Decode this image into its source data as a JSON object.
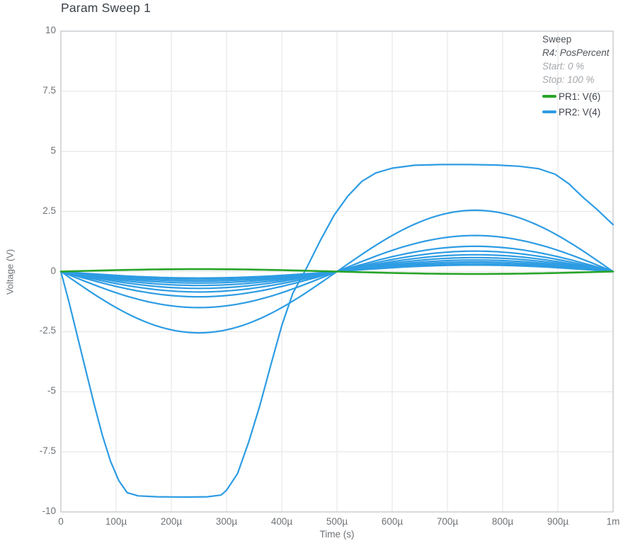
{
  "colors": {
    "green": "#28a428",
    "blue": "#2d9ce3",
    "grid": "#ebebed",
    "axis_border": "#c6cacd",
    "title_text": "#3b4147",
    "tick_text": "#6e7276",
    "legend_text": "#50555a",
    "legend_muted": "#a3a7ab"
  },
  "chart_data": {
    "type": "line",
    "title": "Param Sweep 1",
    "xlabel": "Time (s)",
    "ylabel": "Voltage (V)",
    "xlim_s": [
      0,
      0.001
    ],
    "ylim_v": [
      -10,
      10
    ],
    "grid": true,
    "x_ticks": [
      {
        "t_us": 0,
        "label": "0"
      },
      {
        "t_us": 100,
        "label": "100µ"
      },
      {
        "t_us": 200,
        "label": "200µ"
      },
      {
        "t_us": 300,
        "label": "300µ"
      },
      {
        "t_us": 400,
        "label": "400µ"
      },
      {
        "t_us": 500,
        "label": "500µ"
      },
      {
        "t_us": 600,
        "label": "600µ"
      },
      {
        "t_us": 700,
        "label": "700µ"
      },
      {
        "t_us": 800,
        "label": "800µ"
      },
      {
        "t_us": 900,
        "label": "900µ"
      },
      {
        "t_us": 1000,
        "label": "1m"
      }
    ],
    "y_ticks": [
      {
        "v": 10,
        "label": "10"
      },
      {
        "v": 7.5,
        "label": "7.5"
      },
      {
        "v": 5,
        "label": "5"
      },
      {
        "v": 2.5,
        "label": "2.5"
      },
      {
        "v": 0,
        "label": "0"
      },
      {
        "v": -2.5,
        "label": "-2.5"
      },
      {
        "v": -5,
        "label": "-5"
      },
      {
        "v": -7.5,
        "label": "-7.5"
      },
      {
        "v": -10,
        "label": "-10"
      }
    ],
    "legend": {
      "position": "top-right",
      "header": "Sweep",
      "param": "R4: PosPercent",
      "start": "Start: 0 %",
      "stop": "Stop: 100 %",
      "entries": [
        {
          "label": "PR1: V(6)",
          "color": "green"
        },
        {
          "label": "PR2: V(4)",
          "color": "blue"
        }
      ]
    },
    "period_s": 0.001,
    "series": [
      {
        "id": "pr2-sweep-step-01",
        "trace": "PR2: V(4)",
        "color": "blue",
        "shape": "points",
        "points_us_v": [
          [
            0,
            0
          ],
          [
            15,
            -1.3
          ],
          [
            30,
            -2.7
          ],
          [
            45,
            -4.1
          ],
          [
            60,
            -5.5
          ],
          [
            75,
            -6.8
          ],
          [
            90,
            -7.9
          ],
          [
            105,
            -8.7
          ],
          [
            120,
            -9.2
          ],
          [
            140,
            -9.33
          ],
          [
            175,
            -9.37
          ],
          [
            225,
            -9.38
          ],
          [
            265,
            -9.37
          ],
          [
            290,
            -9.3
          ],
          [
            300,
            -9.1
          ],
          [
            320,
            -8.4
          ],
          [
            340,
            -7.1
          ],
          [
            360,
            -5.6
          ],
          [
            380,
            -3.9
          ],
          [
            400,
            -2.25
          ],
          [
            420,
            -0.9
          ],
          [
            445,
            0.15
          ],
          [
            470,
            1.3
          ],
          [
            495,
            2.35
          ],
          [
            520,
            3.15
          ],
          [
            545,
            3.75
          ],
          [
            570,
            4.1
          ],
          [
            600,
            4.3
          ],
          [
            640,
            4.42
          ],
          [
            690,
            4.45
          ],
          [
            740,
            4.45
          ],
          [
            790,
            4.43
          ],
          [
            830,
            4.38
          ],
          [
            865,
            4.28
          ],
          [
            895,
            4.05
          ],
          [
            920,
            3.65
          ],
          [
            945,
            3.1
          ],
          [
            970,
            2.6
          ],
          [
            1000,
            1.95
          ]
        ]
      },
      {
        "id": "pr2-sweep-step-02",
        "trace": "PR2: V(4)",
        "color": "blue",
        "shape": "sine",
        "amplitude_v": -2.55
      },
      {
        "id": "pr2-sweep-step-03",
        "trace": "PR2: V(4)",
        "color": "blue",
        "shape": "sine",
        "amplitude_v": -1.5
      },
      {
        "id": "pr2-sweep-step-04",
        "trace": "PR2: V(4)",
        "color": "blue",
        "shape": "sine",
        "amplitude_v": -1.05
      },
      {
        "id": "pr2-sweep-step-05",
        "trace": "PR2: V(4)",
        "color": "blue",
        "shape": "sine",
        "amplitude_v": -0.85
      },
      {
        "id": "pr2-sweep-step-06",
        "trace": "PR2: V(4)",
        "color": "blue",
        "shape": "sine",
        "amplitude_v": -0.7
      },
      {
        "id": "pr2-sweep-step-07",
        "trace": "PR2: V(4)",
        "color": "blue",
        "shape": "sine",
        "amplitude_v": -0.58
      },
      {
        "id": "pr2-sweep-step-08",
        "trace": "PR2: V(4)",
        "color": "blue",
        "shape": "sine",
        "amplitude_v": -0.48
      },
      {
        "id": "pr2-sweep-step-09",
        "trace": "PR2: V(4)",
        "color": "blue",
        "shape": "sine",
        "amplitude_v": -0.4
      },
      {
        "id": "pr2-sweep-step-10",
        "trace": "PR2: V(4)",
        "color": "blue",
        "shape": "sine",
        "amplitude_v": -0.33
      },
      {
        "id": "pr2-sweep-step-11",
        "trace": "PR2: V(4)",
        "color": "blue",
        "shape": "sine",
        "amplitude_v": -0.27
      },
      {
        "id": "pr1-trace",
        "trace": "PR1: V(6)",
        "color": "green",
        "shape": "sine",
        "amplitude_v": 0.1
      }
    ]
  }
}
